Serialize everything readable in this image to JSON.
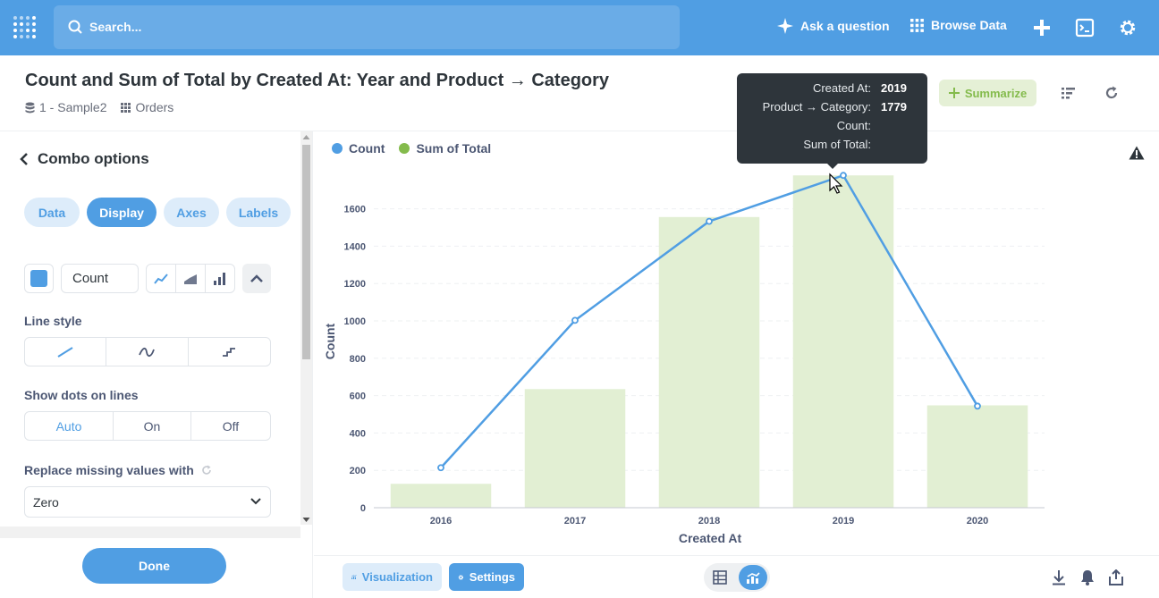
{
  "nav": {
    "search_placeholder": "Search...",
    "ask_question": "Ask a question",
    "browse_data": "Browse Data"
  },
  "question": {
    "title": "Count and Sum of Total by Created At: Year and Product → Category",
    "database": "1 - Sample2",
    "table": "Orders"
  },
  "header": {
    "summarize": "Summarize"
  },
  "sidebar": {
    "title": "Combo options",
    "tabs": [
      "Data",
      "Display",
      "Axes",
      "Labels"
    ],
    "active_tab": "Display",
    "series_name": "Count",
    "line_style_label": "Line style",
    "show_dots_label": "Show dots on lines",
    "show_dots_options": [
      "Auto",
      "On",
      "Off"
    ],
    "show_dots_selected": "Auto",
    "replace_missing_label": "Replace missing values with",
    "replace_missing_value": "Zero",
    "done": "Done"
  },
  "legend": {
    "count": "Count",
    "sum": "Sum of Total"
  },
  "colors": {
    "count": "#509ee3",
    "sum": "#84bb4c",
    "bar_fill": "#e2efd3",
    "brand": "#509ee3"
  },
  "tooltip": {
    "rows": [
      {
        "key": "Created At:",
        "value": "2019"
      },
      {
        "key": "Product → Category:",
        "value": "1779"
      },
      {
        "key": "Count:",
        "value": ""
      },
      {
        "key": "Sum of Total:",
        "value": ""
      }
    ]
  },
  "chart_data": {
    "type": "bar",
    "xlabel": "Created At",
    "ylabel": "Count",
    "ylim": [
      0,
      1780
    ],
    "yticks": [
      0,
      200,
      400,
      600,
      800,
      1000,
      1200,
      1400,
      1600
    ],
    "grid": true,
    "categories": [
      "2016",
      "2017",
      "2018",
      "2019",
      "2020"
    ],
    "series": [
      {
        "name": "Count",
        "kind": "line",
        "values": [
          214,
          1003,
          1533,
          1779,
          544
        ]
      },
      {
        "name": "Sum of Total",
        "kind": "bar",
        "values": [
          128,
          635,
          1556,
          1779,
          548
        ]
      }
    ]
  },
  "footer": {
    "visualization": "Visualization",
    "settings": "Settings"
  }
}
